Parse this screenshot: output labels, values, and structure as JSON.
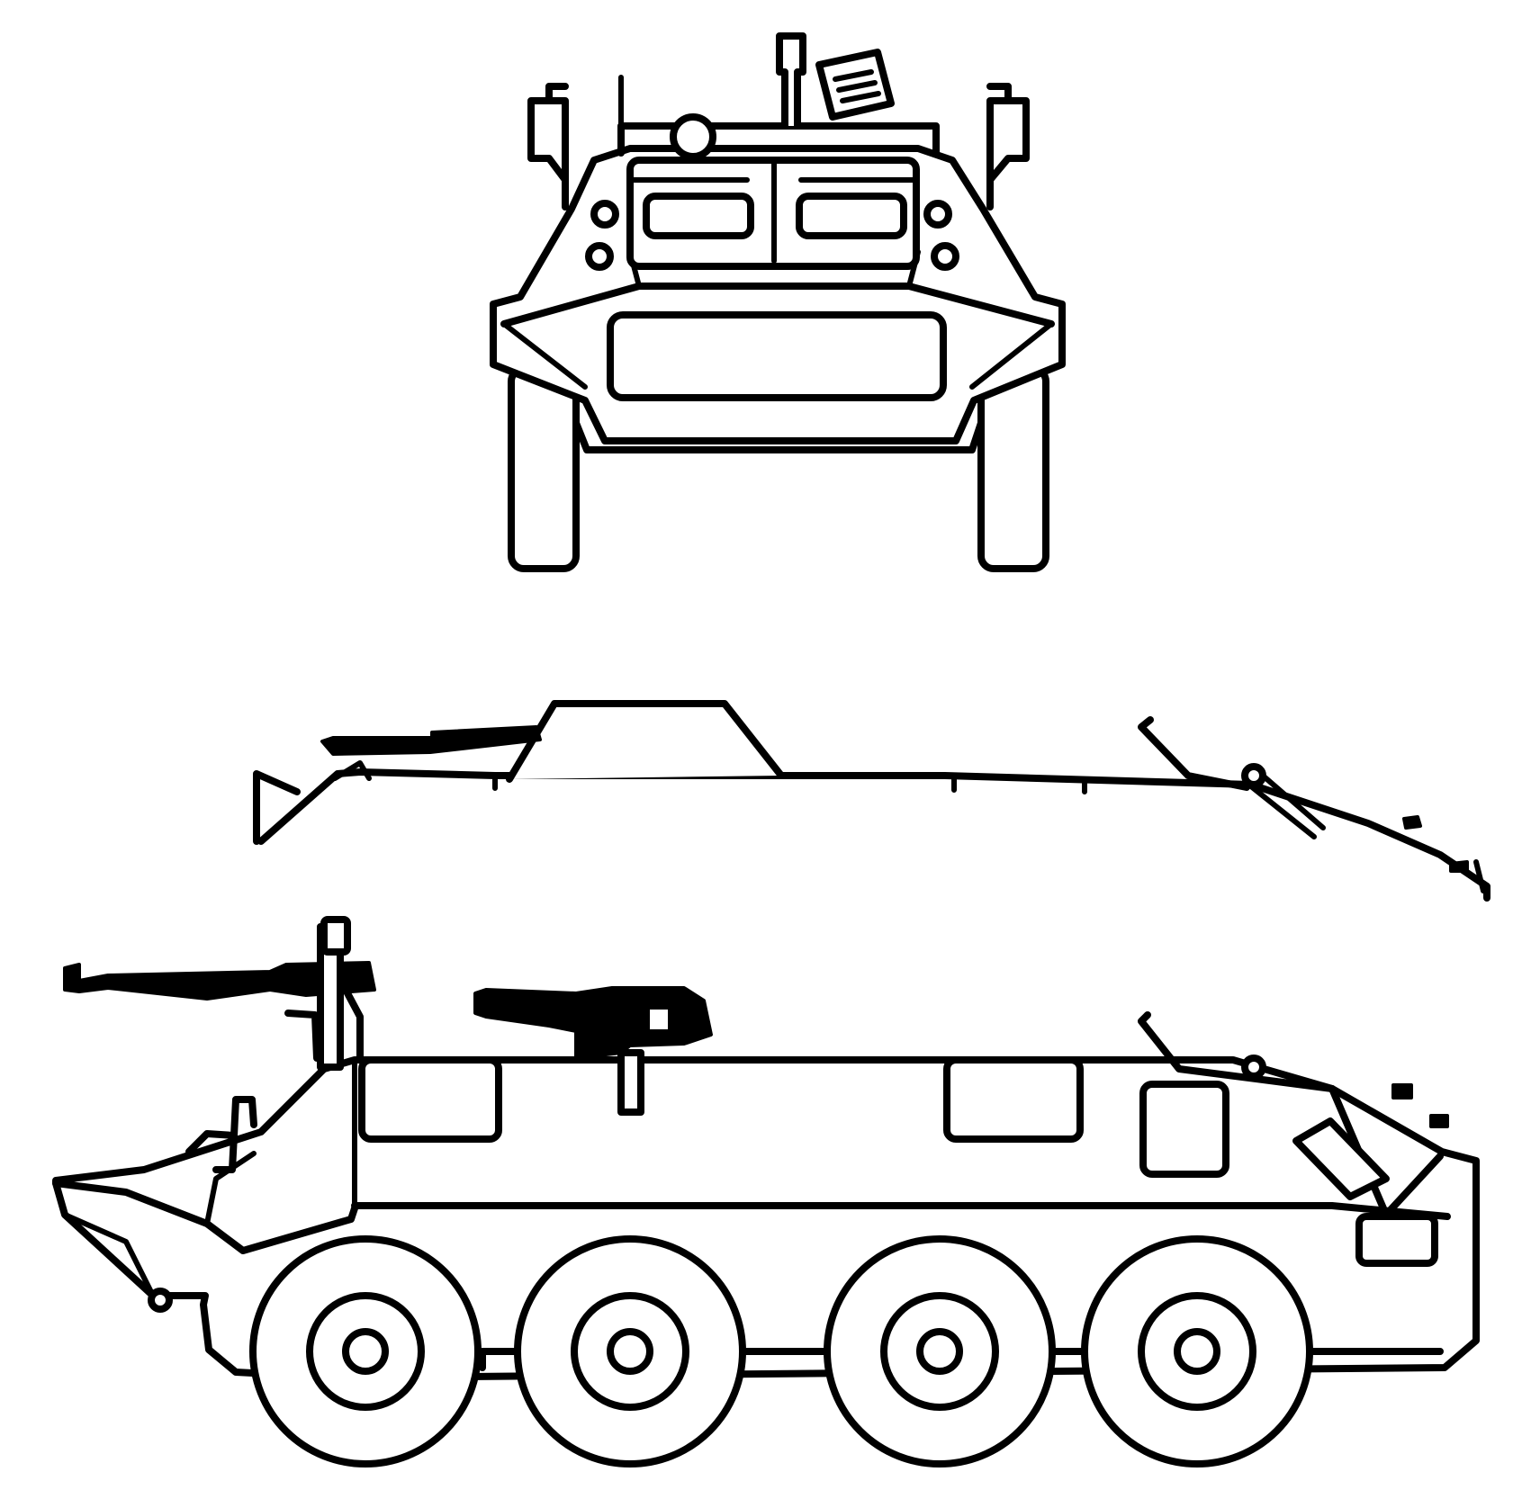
{
  "drawing": {
    "line_color": "#000000",
    "background_color": "#ffffff",
    "views": [
      "front-view",
      "top-view",
      "side-view"
    ],
    "road_wheel_count": 4
  }
}
